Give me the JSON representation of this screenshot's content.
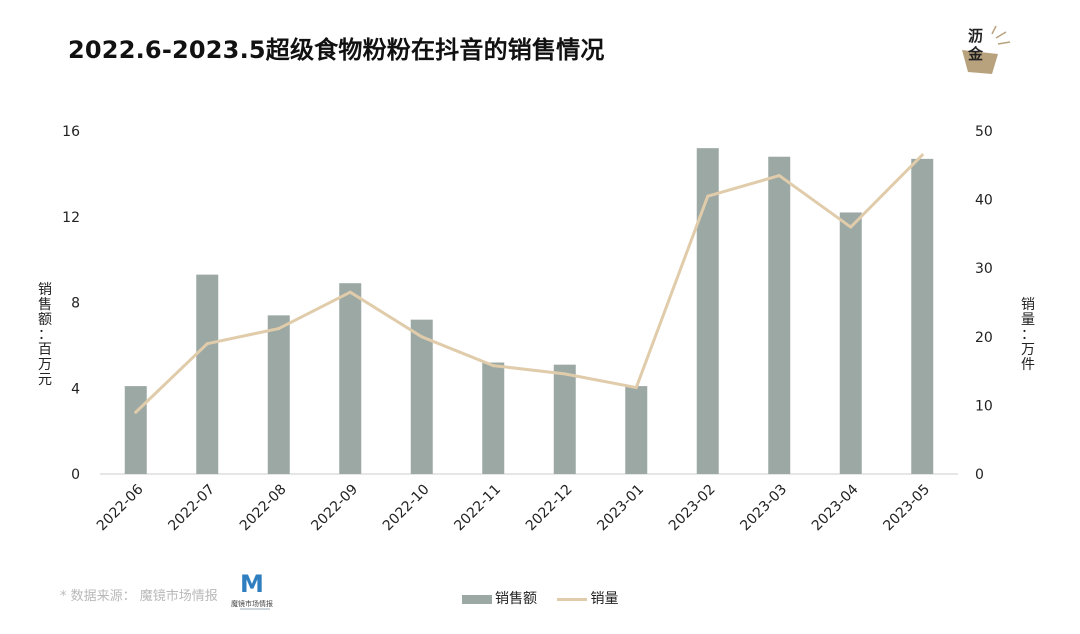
{
  "title": "2022.6-2023.5超级食物粉粉在抖音的销售情况",
  "brand": {
    "line1": "沥",
    "line2": "金"
  },
  "source": {
    "text": "* 数据来源： 魔镜市场情报",
    "logo_letter": "M",
    "logo_caption": "魔镜市场情报"
  },
  "colors": {
    "bar": "#9ca8a3",
    "line": "#e0ccaa",
    "axis": "#cccccc",
    "brand_gold": "#b8a27e"
  },
  "chart_data": {
    "type": "bar",
    "categories": [
      "2022-06",
      "2022-07",
      "2022-08",
      "2022-09",
      "2022-10",
      "2022-11",
      "2022-12",
      "2023-01",
      "2023-02",
      "2023-03",
      "2023-04",
      "2023-05"
    ],
    "series": [
      {
        "name": "销售额",
        "type": "bar",
        "axis": "left",
        "values": [
          4.1,
          9.3,
          7.4,
          8.9,
          7.2,
          5.2,
          5.1,
          4.1,
          15.2,
          14.8,
          12.2,
          14.7
        ]
      },
      {
        "name": "销量",
        "type": "line",
        "axis": "right",
        "values": [
          9,
          19,
          21.2,
          26.5,
          20,
          15.8,
          14.6,
          12.6,
          40.5,
          43.5,
          36,
          46.5
        ]
      }
    ],
    "y_left": {
      "label": "销售额：百万元",
      "ylim": [
        0,
        16
      ],
      "ticks": [
        0,
        4,
        8,
        12,
        16
      ]
    },
    "y_right": {
      "label": "销量：万件",
      "ylim": [
        0,
        50
      ],
      "ticks": [
        0,
        10,
        20,
        30,
        40,
        50
      ]
    },
    "grid": false,
    "legend": "bottom-center"
  }
}
